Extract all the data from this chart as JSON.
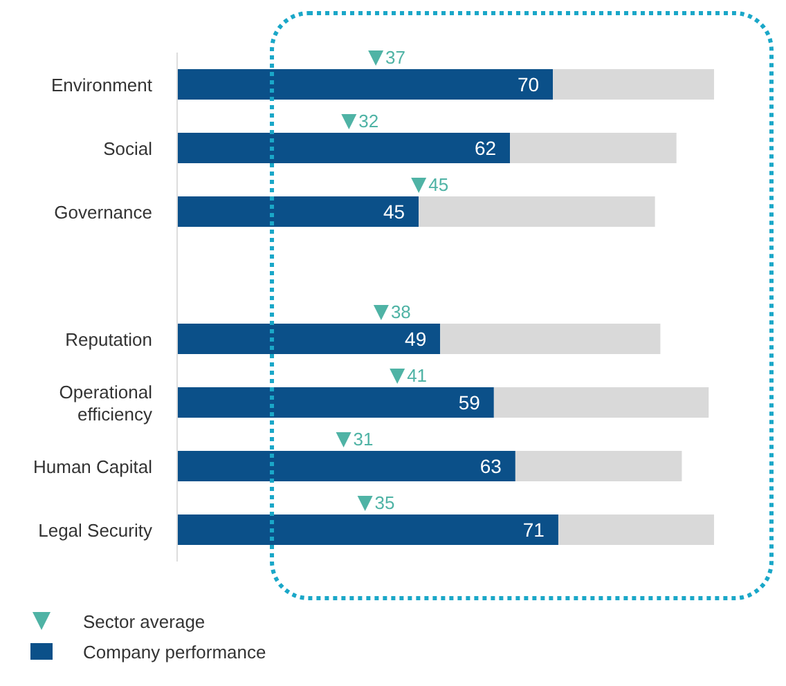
{
  "chart_data": {
    "type": "bar",
    "orientation": "horizontal",
    "stacked": true,
    "categories": [
      "Environment",
      "Social",
      "Governance",
      null,
      "Reputation",
      "Operational efficiency",
      "Human Capital",
      "Legal Security"
    ],
    "series": [
      {
        "type": "scatter",
        "name": "Sector average",
        "color": "#4fb3a5",
        "marker": "triangle",
        "values": [
          37,
          32,
          45,
          null,
          38,
          41,
          31,
          35
        ],
        "value_labels": [
          "37",
          "32",
          "45",
          null,
          "38",
          "41",
          "31",
          "35"
        ]
      },
      {
        "name": "Company performance",
        "color": "#0b5089",
        "values": [
          70,
          62,
          45,
          null,
          49,
          59,
          63,
          71
        ],
        "value_labels": [
          "70",
          "62",
          "45",
          null,
          "49",
          "59",
          "63",
          "71"
        ]
      },
      {
        "color": "#d9d9d9",
        "values": [
          30,
          31,
          44,
          null,
          41,
          40,
          31,
          29
        ]
      }
    ],
    "legend": "bottom left",
    "grid": false
  }
}
